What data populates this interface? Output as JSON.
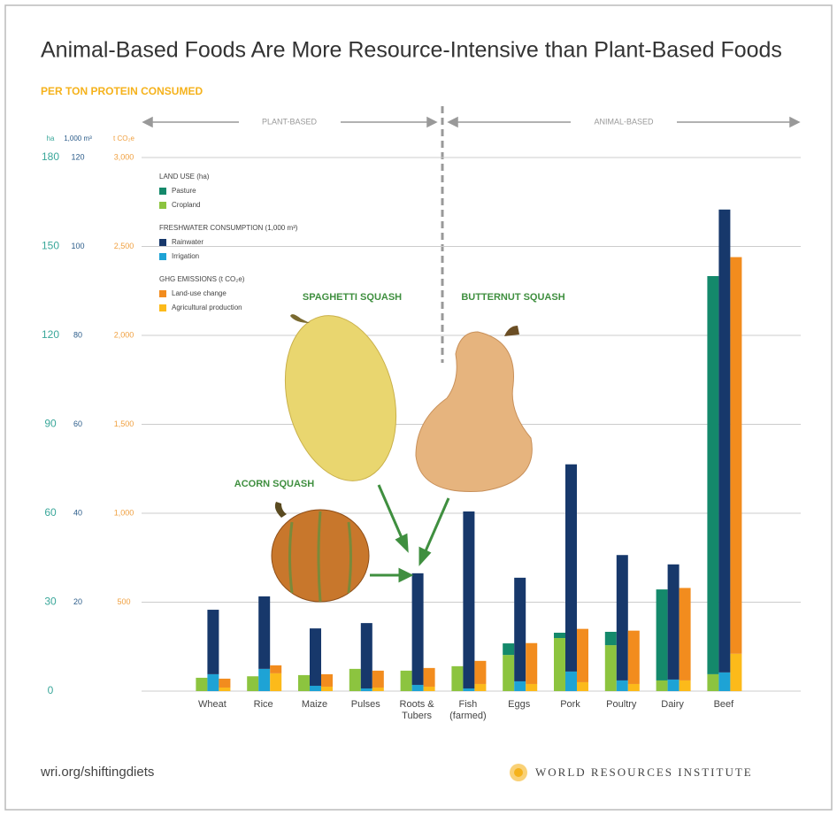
{
  "chart_data": {
    "type": "grouped-stacked-bar",
    "title": "Animal-Based Foods Are More Resource-Intensive than Plant-Based Foods",
    "subtitle": "PER TON PROTEIN CONSUMED",
    "sections": [
      "PLANT-BASED",
      "ANIMAL-BASED"
    ],
    "categories": [
      "Wheat",
      "Rice",
      "Maize",
      "Pulses",
      "Roots & Tubers",
      "Fish (farmed)",
      "Eggs",
      "Pork",
      "Poultry",
      "Dairy",
      "Beef"
    ],
    "axes": [
      {
        "label": "ha",
        "color": "#3aa79a",
        "lim": [
          0,
          180
        ],
        "ticks": [
          0,
          30,
          60,
          90,
          120,
          150,
          180
        ]
      },
      {
        "label": "1,000 m³",
        "color": "#2b5c8a",
        "lim": [
          0,
          120
        ],
        "ticks": [
          20,
          40,
          60,
          80,
          100,
          120
        ]
      },
      {
        "label": "t CO₂e",
        "color": "#f0a040",
        "lim": [
          0,
          3000
        ],
        "ticks": [
          {
            "value": 500,
            "label": "500"
          },
          {
            "value": 1000,
            "label": "1,000"
          },
          {
            "value": 1500,
            "label": "1,500"
          },
          {
            "value": 2000,
            "label": "2,000"
          },
          {
            "value": 2500,
            "label": "2,500"
          },
          {
            "value": 3000,
            "label": "3,000"
          }
        ]
      }
    ],
    "grid": true,
    "groups": [
      {
        "title": "LAND USE (ha)",
        "series": [
          {
            "name": "Pasture",
            "color": "#14896b",
            "values": [
              0,
              0,
              0,
              0,
              0,
              0,
              3.9,
              1.8,
              4.5,
              30.7,
              134.3
            ]
          },
          {
            "name": "Cropland",
            "color": "#8cc43f",
            "values": [
              4.5,
              5,
              5.4,
              7.5,
              6.9,
              8.4,
              12.2,
              17.9,
              15.5,
              3.6,
              5.7
            ]
          }
        ]
      },
      {
        "title": "FRESHWATER CONSUMPTION (1,000 m³)",
        "series": [
          {
            "name": "Rainwater",
            "color": "#17386b",
            "values": [
              14.5,
              16.3,
              12.9,
              14.7,
              25.1,
              39.8,
              23.3,
              46.6,
              28.2,
              25.9,
              104.1
            ]
          },
          {
            "name": "Irrigation",
            "color": "#1ea3d5",
            "values": [
              3.8,
              5,
              1.2,
              0.6,
              1.4,
              0.6,
              2.2,
              4.4,
              2.4,
              2.6,
              4.2
            ]
          }
        ]
      },
      {
        "title": "GHG EMISSIONS (t CO₂e)",
        "series": [
          {
            "name": "Land-use change",
            "color": "#f28c1e",
            "values": [
              50,
              45,
              70,
              95,
              105,
              130,
              230,
              300,
              300,
              520,
              2230
            ]
          },
          {
            "name": "Agricultural production",
            "color": "#fcba1a",
            "values": [
              20,
              100,
              25,
              20,
              25,
              40,
              40,
              50,
              40,
              60,
              210
            ]
          }
        ]
      }
    ],
    "annotations": [
      "SPAGHETTI SQUASH",
      "BUTTERNUT SQUASH",
      "ACORN SQUASH"
    ],
    "source": "wri.org/shiftingdiets",
    "publisher": "WORLD RESOURCES INSTITUTE"
  }
}
